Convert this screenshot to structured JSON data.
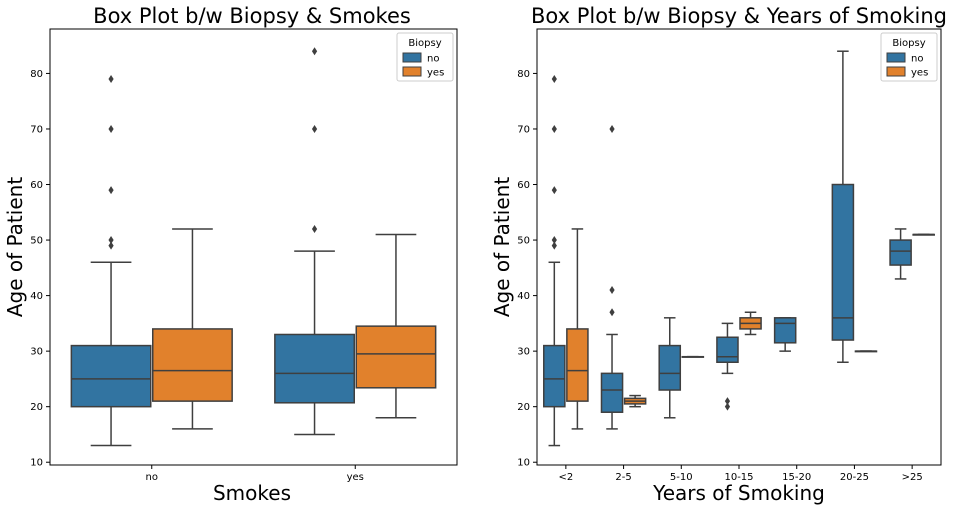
{
  "colors": {
    "no": "#3274a1",
    "yes": "#e1812c",
    "line": "#3f3f3f"
  },
  "chart_data": [
    {
      "type": "box",
      "title": "Box Plot b/w Biopsy & Smokes",
      "xlabel": "Smokes",
      "ylabel": "Age of Patient",
      "ylim": [
        9.5,
        88
      ],
      "yticks": [
        10,
        20,
        30,
        40,
        50,
        60,
        70,
        80
      ],
      "categories": [
        "no",
        "yes"
      ],
      "legend": {
        "title": "Biopsy",
        "labels": [
          "no",
          "yes"
        ],
        "position": "top-right"
      },
      "boxes": [
        {
          "category": "no",
          "hue": "no",
          "whislo": 13,
          "q1": 20,
          "med": 25,
          "q3": 31,
          "whishi": 46,
          "fliers": [
            49,
            50,
            59,
            70,
            79
          ]
        },
        {
          "category": "no",
          "hue": "yes",
          "whislo": 16,
          "q1": 21,
          "med": 26.5,
          "q3": 34,
          "whishi": 52,
          "fliers": []
        },
        {
          "category": "yes",
          "hue": "no",
          "whislo": 15,
          "q1": 20.7,
          "med": 26,
          "q3": 33,
          "whishi": 48,
          "fliers": [
            52,
            70,
            84
          ]
        },
        {
          "category": "yes",
          "hue": "yes",
          "whislo": 18,
          "q1": 23.4,
          "med": 29.5,
          "q3": 34.5,
          "whishi": 51,
          "fliers": []
        }
      ]
    },
    {
      "type": "box",
      "title": "Box Plot b/w Biopsy & Years of Smoking",
      "xlabel": "Years of Smoking",
      "ylabel": "Age of Patient",
      "ylim": [
        9.5,
        88
      ],
      "yticks": [
        10,
        20,
        30,
        40,
        50,
        60,
        70,
        80
      ],
      "categories": [
        "<2",
        "2-5",
        "5-10",
        "10-15",
        "15-20",
        "20-25",
        ">25"
      ],
      "legend": {
        "title": "Biopsy",
        "labels": [
          "no",
          "yes"
        ],
        "position": "top-right"
      },
      "boxes": [
        {
          "category": "<2",
          "hue": "no",
          "whislo": 13,
          "q1": 20,
          "med": 25,
          "q3": 31,
          "whishi": 46,
          "fliers": [
            49,
            50,
            59,
            70,
            79
          ]
        },
        {
          "category": "<2",
          "hue": "yes",
          "whislo": 16,
          "q1": 21,
          "med": 26.5,
          "q3": 34,
          "whishi": 52,
          "fliers": []
        },
        {
          "category": "2-5",
          "hue": "no",
          "whislo": 16,
          "q1": 19,
          "med": 23,
          "q3": 26,
          "whishi": 33,
          "fliers": [
            37,
            41,
            70
          ]
        },
        {
          "category": "2-5",
          "hue": "yes",
          "whislo": 20,
          "q1": 20.5,
          "med": 21,
          "q3": 21.5,
          "whishi": 22,
          "fliers": []
        },
        {
          "category": "5-10",
          "hue": "no",
          "whislo": 18,
          "q1": 23,
          "med": 26,
          "q3": 31,
          "whishi": 36,
          "fliers": []
        },
        {
          "category": "5-10",
          "hue": "yes",
          "whislo": 29,
          "q1": 29,
          "med": 29,
          "q3": 29,
          "whishi": 29,
          "fliers": []
        },
        {
          "category": "10-15",
          "hue": "no",
          "whislo": 26,
          "q1": 28,
          "med": 29,
          "q3": 32.5,
          "whishi": 35,
          "fliers": [
            20,
            21
          ]
        },
        {
          "category": "10-15",
          "hue": "yes",
          "whislo": 33,
          "q1": 34,
          "med": 35,
          "q3": 36,
          "whishi": 37,
          "fliers": []
        },
        {
          "category": "15-20",
          "hue": "no",
          "whislo": 30,
          "q1": 31.5,
          "med": 35,
          "q3": 36,
          "whishi": 36,
          "fliers": []
        },
        {
          "category": "20-25",
          "hue": "no",
          "whislo": 28,
          "q1": 32,
          "med": 36,
          "q3": 60,
          "whishi": 84,
          "fliers": []
        },
        {
          "category": "20-25",
          "hue": "yes",
          "whislo": 30,
          "q1": 30,
          "med": 30,
          "q3": 30,
          "whishi": 30,
          "fliers": []
        },
        {
          "category": ">25",
          "hue": "no",
          "whislo": 43,
          "q1": 45.5,
          "med": 48,
          "q3": 50,
          "whishi": 52,
          "fliers": []
        },
        {
          "category": ">25",
          "hue": "yes",
          "whislo": 51,
          "q1": 51,
          "med": 51,
          "q3": 51,
          "whishi": 51,
          "fliers": []
        }
      ]
    }
  ]
}
